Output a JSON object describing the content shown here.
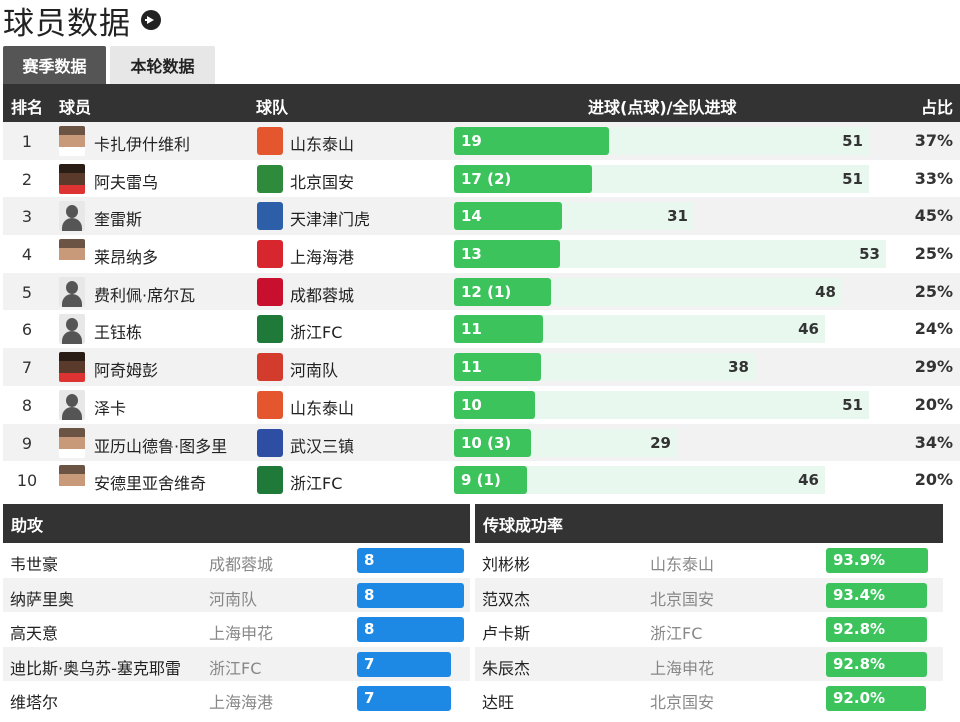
{
  "page": {
    "title": "球员数据"
  },
  "tabs": [
    {
      "label": "赛季数据",
      "active": true
    },
    {
      "label": "本轮数据",
      "active": false
    }
  ],
  "table": {
    "headers": {
      "rank": "排名",
      "player": "球员",
      "team": "球队",
      "goals": "进球(点球)/全队进球",
      "ratio": "占比"
    },
    "rows": [
      {
        "rank": "1",
        "player": "卡扎伊什维利",
        "team": "山东泰山",
        "goals_label": "19",
        "goals": 19,
        "team_goals": 51,
        "team_goals_label": "51",
        "ratio": "37%",
        "avatar": "photo",
        "badge_color": "#e4572e"
      },
      {
        "rank": "2",
        "player": "阿夫雷乌",
        "team": "北京国安",
        "goals_label": "17 (2)",
        "goals": 17,
        "team_goals": 51,
        "team_goals_label": "51",
        "ratio": "33%",
        "avatar": "dark",
        "badge_color": "#2e8b3c"
      },
      {
        "rank": "3",
        "player": "奎雷斯",
        "team": "天津津门虎",
        "goals_label": "14",
        "goals": 14,
        "team_goals": 31,
        "team_goals_label": "31",
        "ratio": "45%",
        "avatar": "silhouette",
        "badge_color": "#2c5fa8"
      },
      {
        "rank": "4",
        "player": "莱昂纳多",
        "team": "上海海港",
        "goals_label": "13",
        "goals": 13,
        "team_goals": 53,
        "team_goals_label": "53",
        "ratio": "25%",
        "avatar": "photo",
        "badge_color": "#d7262e"
      },
      {
        "rank": "5",
        "player": "费利佩·席尔瓦",
        "team": "成都蓉城",
        "goals_label": "12 (1)",
        "goals": 12,
        "team_goals": 48,
        "team_goals_label": "48",
        "ratio": "25%",
        "avatar": "silhouette",
        "badge_color": "#c8102e"
      },
      {
        "rank": "6",
        "player": "王钰栋",
        "team": "浙江FC",
        "goals_label": "11",
        "goals": 11,
        "team_goals": 46,
        "team_goals_label": "46",
        "ratio": "24%",
        "avatar": "silhouette",
        "badge_color": "#1f7a3a"
      },
      {
        "rank": "7",
        "player": "阿奇姆彭",
        "team": "河南队",
        "goals_label": "11",
        "goals": 11,
        "team_goals": 38,
        "team_goals_label": "38",
        "ratio": "29%",
        "avatar": "dark",
        "badge_color": "#d33b2c"
      },
      {
        "rank": "8",
        "player": "泽卡",
        "team": "山东泰山",
        "goals_label": "10",
        "goals": 10,
        "team_goals": 51,
        "team_goals_label": "51",
        "ratio": "20%",
        "avatar": "silhouette",
        "badge_color": "#e4572e"
      },
      {
        "rank": "9",
        "player": "亚历山德鲁·图多里",
        "team": "武汉三镇",
        "goals_label": "10 (3)",
        "goals": 10,
        "team_goals": 29,
        "team_goals_label": "29",
        "ratio": "34%",
        "avatar": "photo",
        "badge_color": "#2d4ea2"
      },
      {
        "rank": "10",
        "player": "安德里亚舍维奇",
        "team": "浙江FC",
        "goals_label": "9 (1)",
        "goals": 9,
        "team_goals": 46,
        "team_goals_label": "46",
        "ratio": "20%",
        "avatar": "photo",
        "badge_color": "#1f7a3a"
      }
    ]
  },
  "assists": {
    "title": "助攻",
    "rows": [
      {
        "player": "韦世豪",
        "team": "成都蓉城",
        "value": "8",
        "amount": 8
      },
      {
        "player": "纳萨里奥",
        "team": "河南队",
        "value": "8",
        "amount": 8
      },
      {
        "player": "高天意",
        "team": "上海申花",
        "value": "8",
        "amount": 8
      },
      {
        "player": "迪比斯·奥乌苏-塞克耶雷",
        "team": "浙江FC",
        "value": "7",
        "amount": 7
      },
      {
        "player": "维塔尔",
        "team": "上海海港",
        "value": "7",
        "amount": 7
      }
    ]
  },
  "passing": {
    "title": "传球成功率",
    "rows": [
      {
        "player": "刘彬彬",
        "team": "山东泰山",
        "value": "93.9%"
      },
      {
        "player": "范双杰",
        "team": "北京国安",
        "value": "93.4%"
      },
      {
        "player": "卢卡斯",
        "team": "浙江FC",
        "value": "92.8%"
      },
      {
        "player": "朱辰杰",
        "team": "上海申花",
        "value": "92.8%"
      },
      {
        "player": "达旺",
        "team": "北京国安",
        "value": "92.0%"
      }
    ]
  }
}
